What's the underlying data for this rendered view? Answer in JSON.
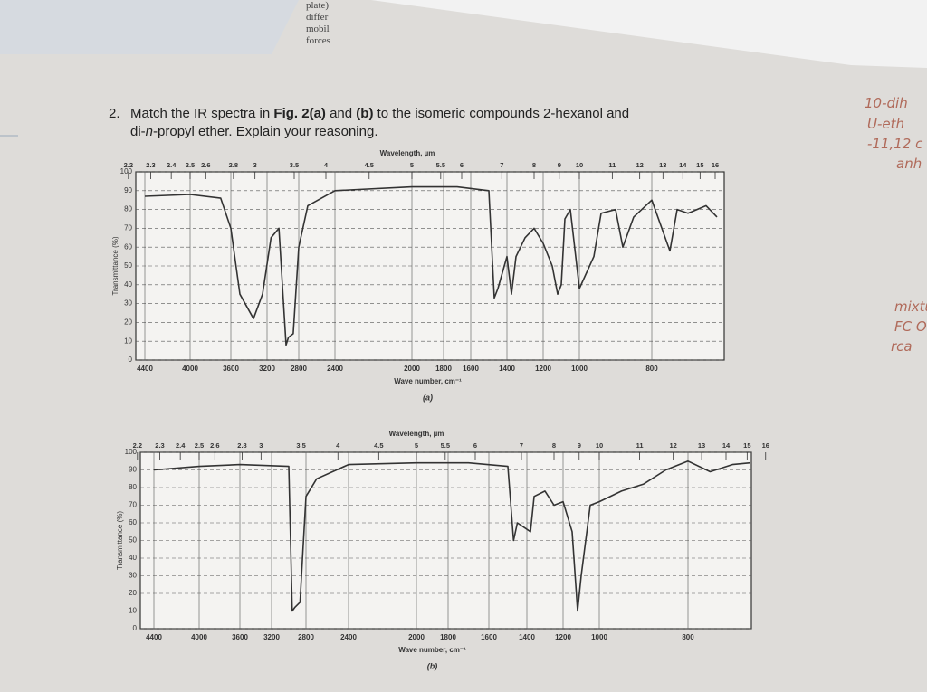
{
  "background_page_text": [
    "plate)",
    "differ",
    "mobil",
    "forces"
  ],
  "handwritten_notes": [
    "10-dih",
    "U-eth",
    "-11,12 c",
    "anh",
    "mixtu",
    "FC O",
    "rca"
  ],
  "question": {
    "number": "2.",
    "line1": [
      {
        "text": "Match the IR spectra in ",
        "style": "normal"
      },
      {
        "text": "Fig. 2(a)",
        "style": "bold"
      },
      {
        "text": " and ",
        "style": "normal"
      },
      {
        "text": "(b)",
        "style": "bold"
      },
      {
        "text": " to the isomeric compounds 2-hexanol and",
        "style": "normal"
      }
    ],
    "line2": [
      {
        "text": "di-",
        "style": "normal"
      },
      {
        "text": "n",
        "style": "italic"
      },
      {
        "text": "-propyl ether.  Explain your reasoning.",
        "style": "normal"
      }
    ]
  },
  "figures": [
    {
      "type": "line",
      "caption": "(a)",
      "top_axis_label": "Wavelength, µm",
      "x_label": "Wave number, cm⁻¹",
      "y_label": "Transmittance (%)",
      "xticks": [
        4400,
        4000,
        3600,
        3200,
        2800,
        2400,
        2000,
        1800,
        1600,
        1400,
        1200,
        1000,
        800
      ],
      "wavelength_ticks": [
        2.2,
        2.3,
        2.4,
        2.5,
        2.6,
        2.8,
        3,
        3.5,
        4,
        4.5,
        5,
        5.5,
        6,
        7,
        8,
        9,
        10,
        11,
        12,
        13,
        14,
        15,
        16
      ],
      "ylim": [
        0,
        100
      ],
      "yticks": [
        0,
        10,
        20,
        30,
        40,
        50,
        60,
        70,
        80,
        90,
        100
      ],
      "grid": true,
      "color": "#333333",
      "spectrum": {
        "wavenumber": [
          4400,
          4000,
          3700,
          3600,
          3500,
          3350,
          3250,
          3150,
          3050,
          2960,
          2930,
          2870,
          2800,
          2700,
          2400,
          2000,
          1700,
          1500,
          1470,
          1450,
          1400,
          1375,
          1350,
          1300,
          1250,
          1200,
          1150,
          1120,
          1100,
          1080,
          1050,
          1000,
          960,
          940,
          900,
          880,
          850,
          800,
          750,
          730,
          700,
          650,
          620
        ],
        "transmittance": [
          87,
          88,
          86,
          70,
          35,
          22,
          35,
          65,
          70,
          8,
          12,
          14,
          60,
          82,
          90,
          92,
          92,
          90,
          33,
          38,
          55,
          35,
          55,
          65,
          70,
          62,
          50,
          35,
          40,
          75,
          80,
          38,
          55,
          78,
          80,
          60,
          76,
          85,
          58,
          80,
          78,
          82,
          76
        ]
      }
    },
    {
      "type": "line",
      "caption": "(b)",
      "top_axis_label": "Wavelength, µm",
      "x_label": "Wave number, cm⁻¹",
      "y_label": "Transmittance (%)",
      "xticks": [
        4400,
        4000,
        3600,
        3200,
        2800,
        2400,
        2000,
        1800,
        1600,
        1400,
        1200,
        1000,
        800
      ],
      "wavelength_ticks": [
        2.2,
        2.3,
        2.4,
        2.5,
        2.6,
        2.8,
        3,
        3.5,
        4,
        4.5,
        5,
        5.5,
        6,
        7,
        8,
        9,
        10,
        11,
        12,
        13,
        14,
        15,
        16
      ],
      "ylim": [
        0,
        100
      ],
      "yticks": [
        0,
        10,
        20,
        30,
        40,
        50,
        60,
        70,
        80,
        90,
        100
      ],
      "grid": true,
      "color": "#333333",
      "spectrum": {
        "wavenumber": [
          4400,
          4000,
          3600,
          3000,
          2960,
          2930,
          2870,
          2800,
          2700,
          2400,
          2000,
          1700,
          1500,
          1470,
          1450,
          1380,
          1360,
          1300,
          1250,
          1200,
          1150,
          1120,
          1100,
          1050,
          1000,
          950,
          900,
          850,
          800,
          750,
          700,
          660
        ],
        "transmittance": [
          90,
          92,
          93,
          92,
          10,
          12,
          15,
          75,
          85,
          93,
          94,
          94,
          92,
          50,
          60,
          55,
          75,
          78,
          70,
          72,
          55,
          10,
          30,
          70,
          72,
          78,
          82,
          90,
          95,
          89,
          93,
          94
        ]
      }
    }
  ]
}
